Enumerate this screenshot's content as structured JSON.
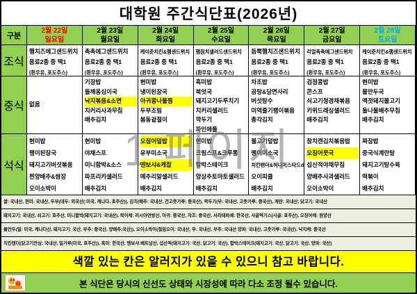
{
  "title": "대학원 주간식단표(2026년)",
  "watermark": "1 페이지",
  "colors": {
    "header_green": "#92D050",
    "highlight_yellow": "#FFFF00",
    "origin_bg": "#EBF1DE",
    "sunday_red": "#FF0000",
    "saturday_blue": "#00B0F0",
    "weekday_black": "#000000"
  },
  "header": {
    "corner": "구분",
    "days": [
      {
        "date": "2월 22일",
        "weekday": "일요일",
        "color": "#FF0000"
      },
      {
        "date": "2월 23일",
        "weekday": "월요일",
        "color": "#000000"
      },
      {
        "date": "2월 24일",
        "weekday": "화요일",
        "color": "#000000"
      },
      {
        "date": "2월 25일",
        "weekday": "수요일",
        "color": "#000000"
      },
      {
        "date": "2월 26일",
        "weekday": "목요일",
        "color": "#000000"
      },
      {
        "date": "2월 27일",
        "weekday": "금요일",
        "color": "#000000"
      },
      {
        "date": "2월 28일",
        "weekday": "토요일",
        "color": "#00B0F0"
      }
    ]
  },
  "meals": [
    {
      "label": "조식",
      "cells": [
        {
          "items": [
            {
              "text": "햄치즈에그샌드위치"
            },
            {
              "text": "음료2종 중 택1"
            },
            {
              "text": "(흰우유, 포도주스)"
            }
          ]
        },
        {
          "items": [
            {
              "text": "촉촉에그샌드위치"
            },
            {
              "text": "음료2종 중 택1"
            },
            {
              "text": "(흰우유, 포도주스)"
            }
          ]
        },
        {
          "items": [
            {
              "text": "케이준치킨&햄샌드위치"
            },
            {
              "text": "음료2종 중 택1"
            },
            {
              "text": "(흰우유, 포도주스)"
            }
          ]
        },
        {
          "items": [
            {
              "text": "햄참치샐러드샌드위치"
            },
            {
              "text": "음료2종 중 택1"
            },
            {
              "text": "(흰우유, 포도주스)"
            }
          ]
        },
        {
          "items": [
            {
              "text": "듬뿍햄치즈샌드위치"
            },
            {
              "text": "음료2종 중 택1"
            },
            {
              "text": "(흰우유, 포도주스)"
            }
          ]
        },
        {
          "items": [
            {
              "text": "리얼촉촉에그샌드위치"
            },
            {
              "text": "음료2종 중 택1"
            },
            {
              "text": "(흰우유, 포도주스)"
            }
          ]
        },
        {
          "items": [
            {
              "text": "케이준치킨&햄샌드위치"
            },
            {
              "text": "음료2종 중 택1"
            },
            {
              "text": "(흰우유, 포도주스)"
            }
          ]
        }
      ]
    },
    {
      "label": "중식",
      "cells": [
        {
          "center": true,
          "items": [
            {
              "text": "없음"
            }
          ]
        },
        {
          "items": [
            {
              "text": "기장밥"
            },
            {
              "text": "들깨옹심이국"
            },
            {
              "text": "낙지볶음&소면",
              "hl": true
            },
            {
              "text": "치커리사과무침"
            },
            {
              "text": "배추김치"
            }
          ]
        },
        {
          "items": [
            {
              "text": "현미밥"
            },
            {
              "text": "냉이된장국"
            },
            {
              "text": "아귀콩나물찜",
              "hl": true
            },
            {
              "text": "두부조림"
            },
            {
              "text": "봄동겉절이"
            }
          ]
        },
        {
          "items": [
            {
              "text": "흑미밥"
            },
            {
              "text": "북엇국"
            },
            {
              "text": "돼지고기두루치기"
            },
            {
              "text": "치커리샐러드"
            },
            {
              "text": "깍두기"
            },
            {
              "text": "파인애플"
            }
          ]
        },
        {
          "items": [
            {
              "text": "차조밥"
            },
            {
              "text": "곰탕&당면사리"
            },
            {
              "text": "버섯탕수"
            },
            {
              "text": "미역줄기팽이볶음"
            },
            {
              "text": "총각김치"
            }
          ]
        },
        {
          "items": [
            {
              "text": "검정콩밥"
            },
            {
              "text": "콘스프"
            },
            {
              "text": "쇠고기청경채볶음"
            },
            {
              "text": "키위드레싱샐러드"
            },
            {
              "text": "배추김치"
            }
          ]
        },
        {
          "items": [
            {
              "text": "현미밥"
            },
            {
              "text": "물만두국"
            },
            {
              "text": "액젓돼지불고기"
            },
            {
              "text": "돌나물배추무침"
            },
            {
              "text": "배추김치"
            }
          ]
        }
      ]
    },
    {
      "label": "석식",
      "cells": [
        {
          "items": [
            {
              "text": "현미밥"
            },
            {
              "text": "팽이된장국"
            },
            {
              "text": "돼지고기버섯볶음"
            },
            {
              "text": "찐양배추&쌈장"
            },
            {
              "text": "오이소박이"
            }
          ]
        },
        {
          "items": [
            {
              "text": "현미밥"
            },
            {
              "text": "야채스프"
            },
            {
              "text": "미니함박&소스"
            },
            {
              "text": "파프리카샐러드"
            },
            {
              "text": "배추김치"
            }
          ]
        },
        {
          "items": [
            {
              "text": "오징어덮밥",
              "hl": true
            },
            {
              "text": "유부미소국"
            },
            {
              "text": "멘보샤&케찹",
              "hl": true
            },
            {
              "text": "메추리알샐러드"
            },
            {
              "text": "배추김치"
            }
          ]
        },
        {
          "items": [
            {
              "text": "현미밥"
            },
            {
              "text": "크림스프&크루통"
            },
            {
              "text": "함박스테이크"
            },
            {
              "text": "양상추토마토샐러드"
            },
            {
              "text": "배추김치"
            }
          ]
        },
        {
          "items": [
            {
              "text": "불고기덮밥"
            },
            {
              "text": "팽이미소국"
            },
            {
              "text": "치킨텐더&허니머스타드d"
            },
            {
              "text": "오이피클"
            },
            {
              "text": "배추김치"
            }
          ]
        },
        {
          "items": [
            {
              "text": "참치캔김치볶음밥"
            },
            {
              "text": "오징어뭇국",
              "hl": true
            },
            {
              "text": "섭산적야채무침"
            },
            {
              "text": "양배추사과샐러드"
            },
            {
              "text": "오이소박이"
            }
          ]
        },
        {
          "items": [
            {
              "text": "짜장밥"
            },
            {
              "text": "중국식계란탕"
            },
            {
              "text": "돼지고기탕수육"
            },
            {
              "text": "떡볶이"
            },
            {
              "text": "배추김치"
            }
          ]
        }
      ]
    }
  ],
  "origin_notes": [
    "쌀: 국내산, 현미: 국내산, 두부(대두: 외국산(:미국, 캐나다, 호주산)), 김치(배추: 국내산, 건고춧가루: 중국산), 깍두기(무: 국내산, 고춧가루: 중국산), 계란: 국내산, 닭고기: 국내산",
    "돼지고기: 국내산, 쇠고기: 호주산, 미니함박(돼지고기: 국내산), 북어채: 러시아연방산, 아귀: 중국산, 차조: 중국산, 서리태파쇄: 한국산, 사골엑기스(사골: 호주산), 오징어채: 원양산",
    "물만두(밀: 미국, 캐나다산, 돼지고기: 국산, 부추: 중국산, 양배추:국산)), 오이소박이(절임오이: 국내산, 무: 국내산, 부추: 국내산 양파: 국내산, 고춧가루: 국내산), 낙지채: 중국산",
    "치킨텐더(닭고기안심: 국내산, 밀가루(미국, 호주산)), 흑미: 한국산, 멘보샤:베트남산, 섭산적(돼지고기: 국산, 닭고기: 국산), 함박스테이크(돼지고기: 국산, 닭고기: 국산, 양파: 국산)"
  ],
  "allergy_notice": "색깔 있는 칸은  알러지가 있을 수 있으니 참고 바랍니다.",
  "footer_notice": "본 식단은 당시의 신선도 상태와 시장성에 따라 다소 조정 될수 있습니다."
}
